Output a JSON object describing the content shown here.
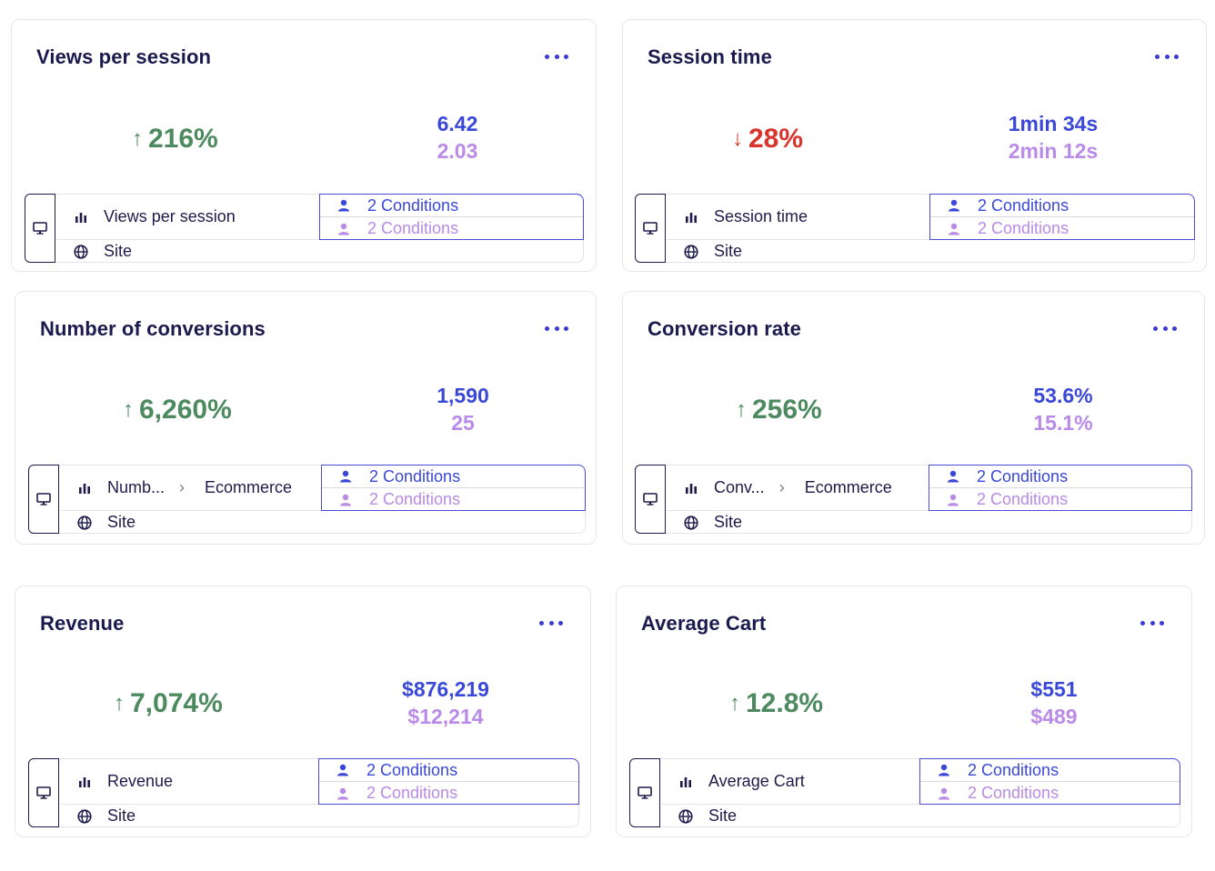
{
  "cards": [
    {
      "title": "Views per session",
      "direction": "up",
      "arrow": "↑",
      "change": "216%",
      "value1": "6.42",
      "value2": "2.03",
      "metric_label": "Views per session",
      "category": "",
      "scope": "Site",
      "condition1": "2 Conditions",
      "condition2": "2 Conditions"
    },
    {
      "title": "Session time",
      "direction": "down",
      "arrow": "↓",
      "change": "28%",
      "value1": "1min 34s",
      "value2": "2min 12s",
      "metric_label": "Session time",
      "category": "",
      "scope": "Site",
      "condition1": "2 Conditions",
      "condition2": "2 Conditions"
    },
    {
      "title": "Number of conversions",
      "direction": "up",
      "arrow": "↑",
      "change": "6,260%",
      "value1": "1,590",
      "value2": "25",
      "metric_label": "Numb...",
      "category": "Ecommerce",
      "scope": "Site",
      "condition1": "2 Conditions",
      "condition2": "2 Conditions"
    },
    {
      "title": "Conversion rate",
      "direction": "up",
      "arrow": "↑",
      "change": "256%",
      "value1": "53.6%",
      "value2": "15.1%",
      "metric_label": "Conv...",
      "category": "Ecommerce",
      "scope": "Site",
      "condition1": "2 Conditions",
      "condition2": "2 Conditions"
    },
    {
      "title": "Revenue",
      "direction": "up",
      "arrow": "↑",
      "change": "7,074%",
      "value1": "$876,219",
      "value2": "$12,214",
      "metric_label": "Revenue",
      "category": "",
      "scope": "Site",
      "condition1": "2 Conditions",
      "condition2": "2 Conditions"
    },
    {
      "title": "Average Cart",
      "direction": "up",
      "arrow": "↑",
      "change": "12.8%",
      "value1": "$551",
      "value2": "$489",
      "metric_label": "Average Cart",
      "category": "",
      "scope": "Site",
      "condition1": "2 Conditions",
      "condition2": "2 Conditions"
    }
  ],
  "colors": {
    "up": "#4d8a5f",
    "down": "#d9342b",
    "primary": "#3a48d9",
    "secondary": "#b98ae6"
  },
  "icons": {
    "more": "more-dots-icon",
    "device": "desktop-icon",
    "metric": "bar-chart-icon",
    "scope": "globe-icon",
    "segment": "user-icon",
    "chevron": "chevron-right-icon"
  }
}
